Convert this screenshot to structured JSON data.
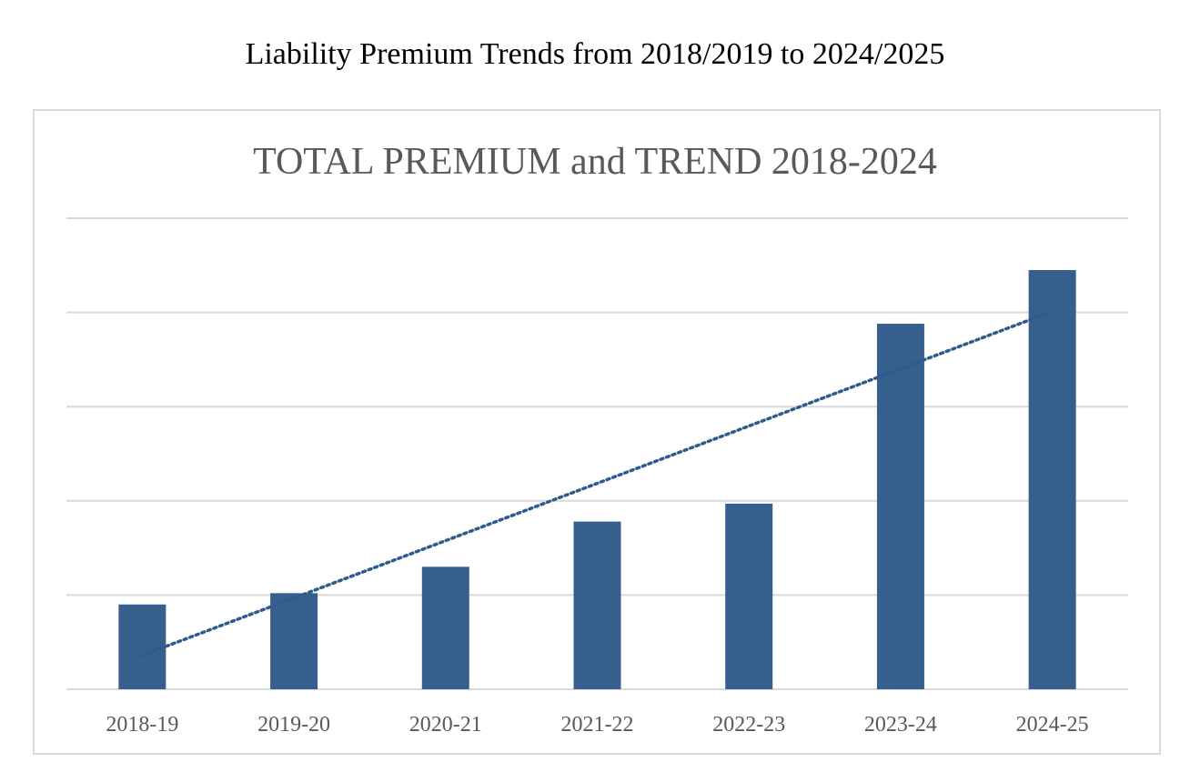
{
  "caption": "Liability Premium Trends from 2018/2019 to 2024/2025",
  "chart_data": {
    "type": "bar",
    "title": "TOTAL PREMIUM and TREND 2018-2024",
    "categories": [
      "2018-19",
      "2019-20",
      "2020-21",
      "2021-22",
      "2022-23",
      "2023-24",
      "2024-25"
    ],
    "values": [
      0.9,
      1.02,
      1.3,
      1.78,
      1.97,
      3.88,
      4.45
    ],
    "ylim": [
      0,
      5
    ],
    "y_gridlines": [
      0,
      1,
      2,
      3,
      4,
      5
    ],
    "y_tick_labels_shown": false,
    "trendline": {
      "type": "linear",
      "style": "dotted",
      "color": "#2f5b8c"
    },
    "bar_color": "#365f8d",
    "grid_color": "#d9d9d9",
    "grid": true,
    "legend": "none"
  }
}
